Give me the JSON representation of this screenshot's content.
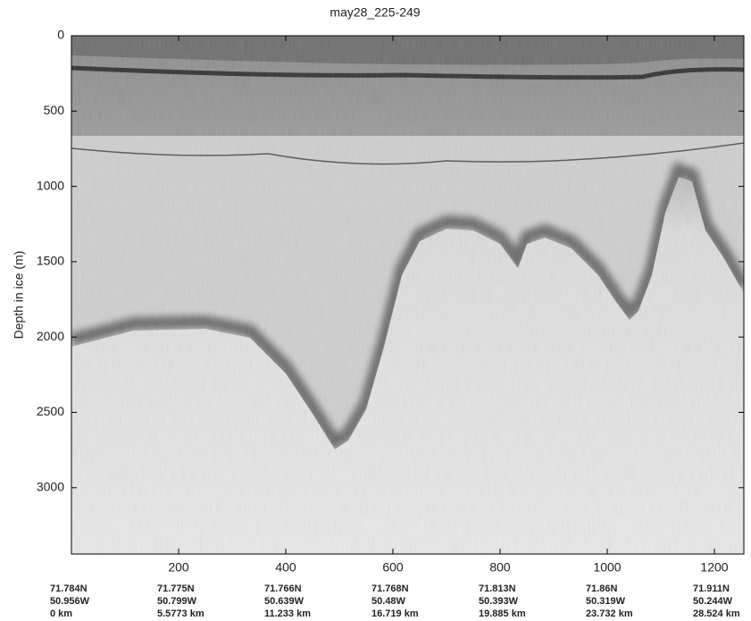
{
  "chart_data": {
    "type": "image",
    "title": "may28_225-249",
    "ylabel": "Depth in ice (m)",
    "xlim": [
      0,
      1255
    ],
    "ylim": [
      0,
      3440
    ],
    "xticks": [
      200,
      400,
      600,
      800,
      1000,
      1200
    ],
    "yticks": [
      0,
      500,
      1000,
      1500,
      2000,
      2500,
      3000
    ],
    "location_labels": [
      [
        "71.784N",
        "50.956W",
        "0 km"
      ],
      [
        "71.775N",
        "50.799W",
        "5.5773 km"
      ],
      [
        "71.766N",
        "50.639W",
        "11.233 km"
      ],
      [
        "71.768N",
        "50.48W",
        "16.719 km"
      ],
      [
        "71.813N",
        "50.393W",
        "19.885 km"
      ],
      [
        "71.86N",
        "50.319W",
        "23.732 km"
      ],
      [
        "71.911N",
        "50.244W",
        "28.524 km"
      ]
    ]
  }
}
